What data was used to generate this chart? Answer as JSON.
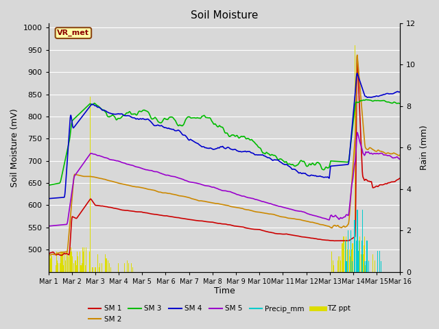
{
  "title": "Soil Moisture",
  "xlabel": "Time",
  "ylabel_left": "Soil Moisture (mV)",
  "ylabel_right": "Rain (mm)",
  "ylim_left": [
    450,
    1010
  ],
  "ylim_right": [
    0,
    12
  ],
  "bg_color": "#d8d8d8",
  "station_label": "VR_met",
  "x_tick_labels": [
    "Mar 1",
    "Mar 2",
    "Mar 3",
    "Mar 4",
    "Mar 5",
    "Mar 6",
    "Mar 7",
    "Mar 8",
    "Mar 9",
    "Mar 10",
    "Mar 11",
    "Mar 12",
    "Mar 13",
    "Mar 14",
    "Mar 15",
    "Mar 16"
  ],
  "colors": {
    "SM1": "#cc0000",
    "SM2": "#cc8800",
    "SM3": "#00bb00",
    "SM4": "#0000cc",
    "SM5": "#9900cc",
    "Precip": "#00cccc",
    "TZppt": "#dddd00"
  },
  "yticks_left": [
    500,
    550,
    600,
    650,
    700,
    750,
    800,
    850,
    900,
    950,
    1000
  ],
  "yticks_right": [
    0,
    2,
    4,
    6,
    8,
    10,
    12
  ]
}
